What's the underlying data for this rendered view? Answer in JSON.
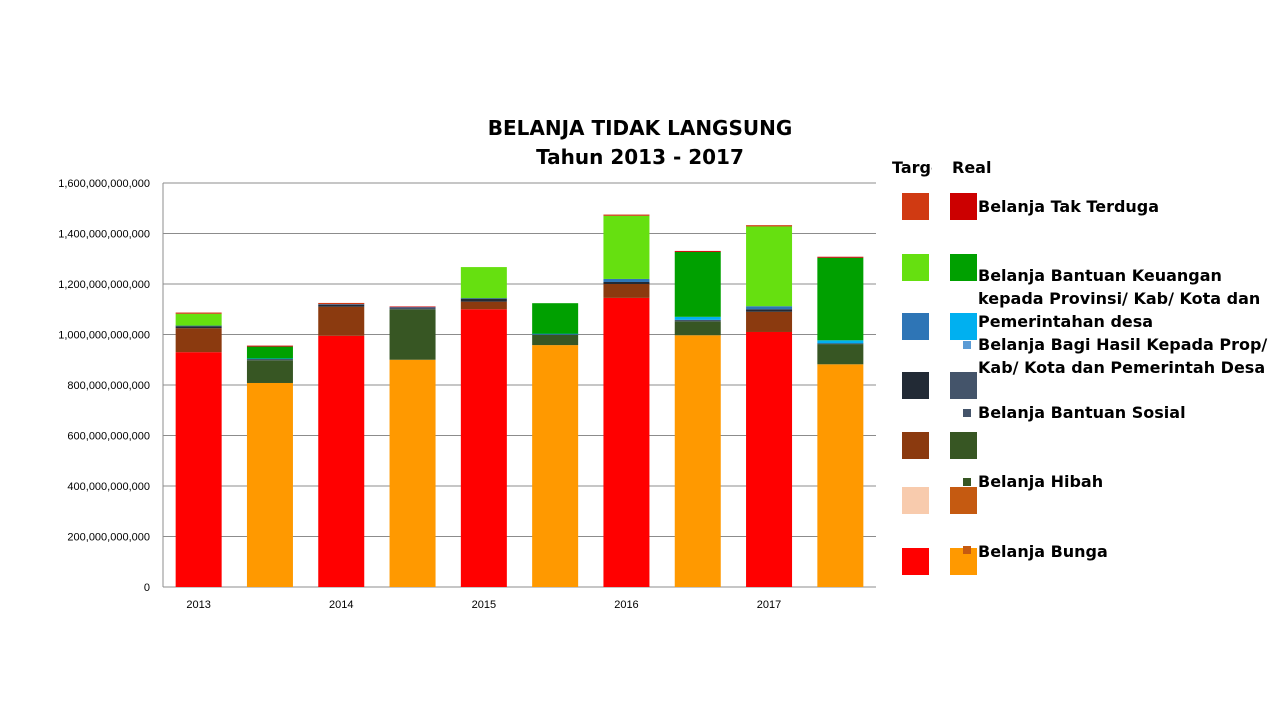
{
  "chart_data": {
    "type": "bar",
    "stacked": true,
    "title": "BELANJA TIDAK LANGSUNG",
    "subtitle": "Tahun 2013 - 2017",
    "categories": [
      "2013",
      "2013",
      "2014",
      "2014",
      "2015",
      "2015",
      "2016",
      "2016",
      "2017",
      "2017"
    ],
    "x_tick_labels": [
      "2013",
      "",
      "2014",
      "",
      "2015",
      "",
      "2016",
      "",
      "2017",
      ""
    ],
    "bar_kind": [
      "Target",
      "Realisasi",
      "Target",
      "Realisasi",
      "Target",
      "Realisasi",
      "Target",
      "Realisasi",
      "Target",
      "Realisasi"
    ],
    "ylim": [
      0,
      1600000000000
    ],
    "y_ticks": [
      0,
      200000000000,
      400000000000,
      600000000000,
      800000000000,
      1000000000000,
      1200000000000,
      1400000000000,
      1600000000000
    ],
    "y_tick_labels": [
      "0",
      "200,000,000,000",
      "400,000,000,000",
      "600,000,000,000",
      "800,000,000,000",
      "1,000,000,000,000",
      "1,200,000,000,000",
      "1,400,000,000,000",
      "1,600,000,000,000"
    ],
    "grid": true,
    "legend_position": "right",
    "series": [
      {
        "name": "Belanja Bunga",
        "target_color": "#ff0000",
        "realisasi_color": "#ff9900",
        "values": [
          930000000000,
          808000000000,
          995000000000,
          900000000000,
          1100000000000,
          958000000000,
          1145000000000,
          997000000000,
          1010000000000,
          882000000000
        ]
      },
      {
        "name": "Belanja Hibah",
        "target_color": "#8b3a0f",
        "realisasi_color": "#375623",
        "values": [
          95000000000,
          90000000000,
          115000000000,
          200000000000,
          30000000000,
          40000000000,
          55000000000,
          55000000000,
          80000000000,
          80000000000
        ]
      },
      {
        "name": "Belanja Bantuan Sosial",
        "target_color": "#222a35",
        "realisasi_color": "#44546a",
        "values": [
          8000000000,
          5000000000,
          8000000000,
          5000000000,
          12000000000,
          3000000000,
          8000000000,
          6000000000,
          10000000000,
          3000000000
        ]
      },
      {
        "name": "Belanja Bagi Hasil Kepada Prop/ Kab/ Kota dan Pemerintah Desa",
        "target_color": "#2e75b6",
        "realisasi_color": "#00b0f0",
        "values": [
          2000000000,
          2000000000,
          2000000000,
          2000000000,
          2000000000,
          2000000000,
          12000000000,
          12000000000,
          12000000000,
          12000000000
        ]
      },
      {
        "name": "Belanja Bantuan Keuangan kepada Provinsi/ Kab/ Kota dan Pemerintahan desa",
        "target_color": "#66e010",
        "realisasi_color": "#00a000",
        "values": [
          47000000000,
          47000000000,
          0,
          0,
          123000000000,
          121000000000,
          250000000000,
          257000000000,
          316000000000,
          327000000000
        ]
      },
      {
        "name": "Belanja Tak Terduga",
        "target_color": "#d03a12",
        "realisasi_color": "#cc0000",
        "values": [
          5000000000,
          3000000000,
          5000000000,
          3000000000,
          0,
          0,
          5000000000,
          3000000000,
          5000000000,
          3000000000
        ]
      }
    ]
  },
  "legend": {
    "header_target": "Target",
    "header_realisasi": "Realisasi",
    "rows": [
      {
        "label": "Belanja Tak Terduga",
        "target_color": "#d03a12",
        "realisasi_color": "#cc0000",
        "mini_color": ""
      },
      {
        "label": "Belanja Bantuan Keuangan kepada Provinsi/ Kab/ Kota dan Pemerintahan desa",
        "target_color": "#66e010",
        "realisasi_color": "#00a000",
        "mini_color": ""
      },
      {
        "label": "Belanja Bagi Hasil Kepada Prop/ Kab/ Kota dan Pemerintah Desa",
        "target_color": "#2e75b6",
        "realisasi_color": "#00b0f0",
        "mini_color": "#5b9bd5"
      },
      {
        "label": "Belanja Bantuan Sosial",
        "target_color": "#222a35",
        "realisasi_color": "#44546a",
        "mini_color": "#44546a"
      },
      {
        "label": "Belanja Hibah",
        "target_color": "#8b3a0f",
        "realisasi_color": "#375623",
        "mini_color": "#375623"
      },
      {
        "label": "",
        "target_color": "#f8cbad",
        "realisasi_color": "#c55a11",
        "mini_color": ""
      },
      {
        "label": "Belanja Bunga",
        "target_color": "#ff0000",
        "realisasi_color": "#ff9900",
        "mini_color": "#c55a11"
      }
    ]
  }
}
